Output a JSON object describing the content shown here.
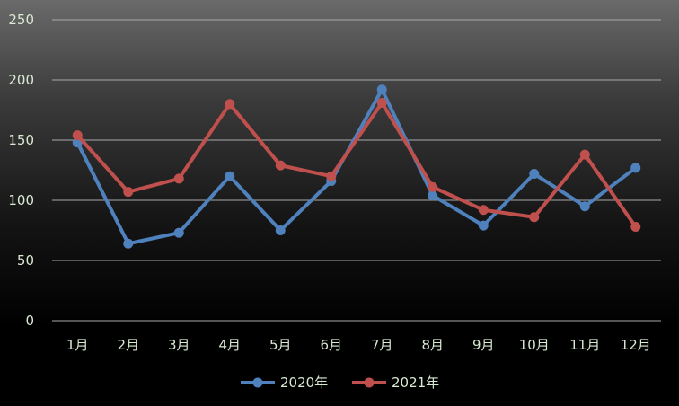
{
  "chart_data": {
    "type": "line",
    "title": "",
    "xlabel": "",
    "ylabel": "",
    "categories": [
      "1月",
      "2月",
      "3月",
      "4月",
      "5月",
      "6月",
      "7月",
      "8月",
      "9月",
      "10月",
      "11月",
      "12月"
    ],
    "yticks": [
      "0",
      "50",
      "100",
      "150",
      "200",
      "250"
    ],
    "ylim": [
      0,
      250
    ],
    "grid": true,
    "legend_position": "bottom",
    "series": [
      {
        "name": "2020年",
        "color": "#4f81bd",
        "values": [
          148,
          64,
          73,
          120,
          75,
          116,
          192,
          104,
          79,
          122,
          95,
          127
        ]
      },
      {
        "name": "2021年",
        "color": "#c0504d",
        "values": [
          154,
          107,
          118,
          180,
          129,
          120,
          181,
          111,
          92,
          86,
          138,
          78
        ]
      }
    ]
  }
}
